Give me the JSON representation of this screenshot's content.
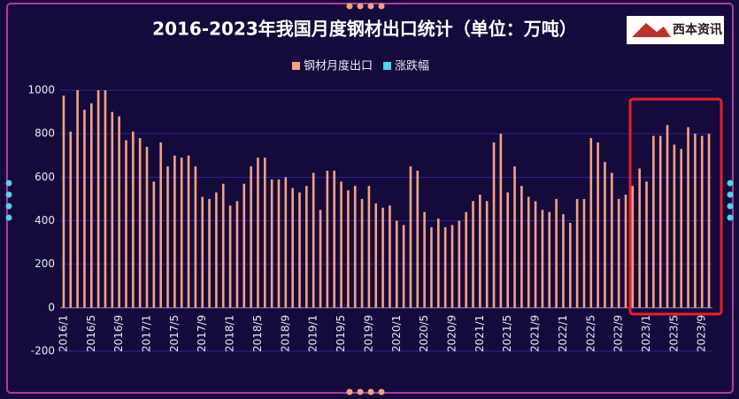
{
  "chart_data": {
    "type": "bar",
    "title": "2016-2023年我国月度钢材出口统计（单位：万吨）",
    "logo": "西本资讯",
    "categories": [
      "2016/1",
      null,
      null,
      null,
      "2016/5",
      null,
      null,
      null,
      "2016/9",
      null,
      null,
      null,
      "2017/1",
      null,
      null,
      null,
      "2017/5",
      null,
      null,
      null,
      "2017/9",
      null,
      null,
      null,
      "2018/1",
      null,
      null,
      null,
      "2018/5",
      null,
      null,
      null,
      "2018/9",
      null,
      null,
      null,
      "2019/1",
      null,
      null,
      null,
      "2019/5",
      null,
      null,
      null,
      "2019/9",
      null,
      null,
      null,
      "2020/1",
      null,
      null,
      null,
      "2020/5",
      null,
      null,
      null,
      "2020/9",
      null,
      null,
      null,
      "2021/1",
      null,
      null,
      null,
      "2021/5",
      null,
      null,
      null,
      "2021/9",
      null,
      null,
      null,
      "2022/1",
      null,
      null,
      null,
      "2022/5",
      null,
      null,
      null,
      "2022/9",
      null,
      null,
      null,
      "2023/1",
      null,
      null,
      null,
      "2023/5",
      null,
      null,
      null,
      "2023/9",
      null
    ],
    "series": [
      {
        "name": "钢材月度出口",
        "color": "#f5a27e",
        "values": [
          975,
          810,
          1000,
          910,
          940,
          1000,
          1000,
          900,
          880,
          770,
          810,
          780,
          740,
          580,
          760,
          650,
          700,
          690,
          700,
          650,
          510,
          500,
          530,
          570,
          470,
          490,
          570,
          650,
          690,
          690,
          590,
          590,
          600,
          550,
          530,
          560,
          620,
          450,
          630,
          630,
          580,
          540,
          560,
          500,
          560,
          480,
          460,
          470,
          400,
          380,
          650,
          630,
          440,
          370,
          410,
          370,
          380,
          400,
          440,
          490,
          520,
          490,
          760,
          800,
          530,
          650,
          560,
          510,
          490,
          450,
          440,
          500,
          430,
          390,
          500,
          500,
          780,
          760,
          670,
          620,
          500,
          520,
          560,
          640,
          580,
          790,
          790,
          840,
          750,
          730,
          830,
          800,
          790,
          800
        ]
      },
      {
        "name": "涨跌幅",
        "color": "#4fd4e8",
        "values": [
          null,
          null,
          null,
          null,
          null,
          null,
          null,
          null,
          null,
          null,
          null,
          null,
          null,
          null,
          null,
          null,
          null,
          null,
          null,
          null,
          null,
          null,
          null,
          null,
          null,
          null,
          null,
          null,
          null,
          null,
          null,
          null,
          null,
          null,
          null,
          null,
          null,
          null,
          null,
          null,
          null,
          null,
          null,
          null,
          null,
          null,
          null,
          null,
          null,
          null,
          null,
          null,
          null,
          null,
          null,
          null,
          null,
          null,
          null,
          null,
          null,
          null,
          null,
          null,
          null,
          null,
          null,
          null,
          null,
          null,
          null,
          null,
          null,
          null,
          null,
          null,
          null,
          null,
          null,
          null,
          null,
          null,
          null,
          null,
          null,
          null,
          null,
          null,
          null,
          null,
          null,
          null,
          null,
          null
        ]
      }
    ],
    "ylim": [
      -200,
      1000
    ],
    "yticks": [
      -200,
      0,
      200,
      400,
      600,
      800,
      1000
    ],
    "grid": true
  }
}
